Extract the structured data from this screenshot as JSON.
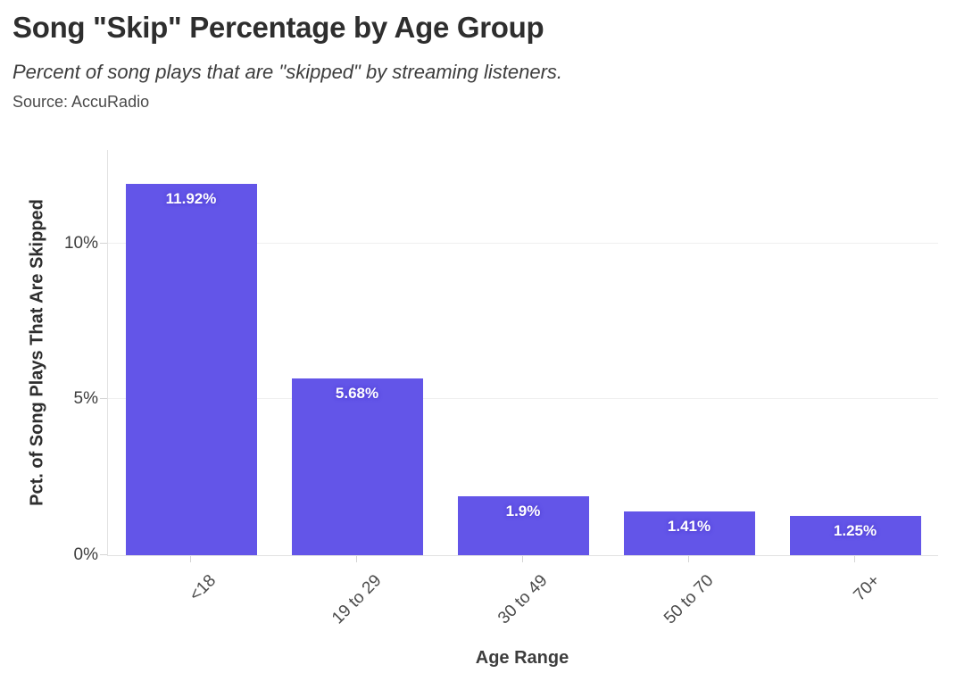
{
  "header": {
    "title": "Song \"Skip\" Percentage by Age Group",
    "subtitle": "Percent of song plays that are \"skipped\" by streaming listeners.",
    "source": "Source: AccuRadio"
  },
  "chart_data": {
    "type": "bar",
    "title": "Song \"Skip\" Percentage by Age Group",
    "subtitle": "Percent of song plays that are \"skipped\" by streaming listeners.",
    "source": "Source: AccuRadio",
    "categories": [
      "<18",
      "19 to 29",
      "30 to 49",
      "50 to 70",
      "70+"
    ],
    "values": [
      11.92,
      5.68,
      1.9,
      1.41,
      1.25
    ],
    "bar_labels": [
      "11.92%",
      "5.68%",
      "1.9%",
      "1.41%",
      "1.25%"
    ],
    "xlabel": "Age Range",
    "ylabel": "Pct. of Song Plays That Are Skipped",
    "ylim": [
      0,
      13
    ],
    "yticks": [
      {
        "value": 0,
        "label": "0%"
      },
      {
        "value": 5,
        "label": "5%"
      },
      {
        "value": 10,
        "label": "10%"
      }
    ],
    "grid": "horizontal",
    "legend": "none",
    "bar_color": "#6355e8",
    "bar_label_color": "#ffffff"
  }
}
